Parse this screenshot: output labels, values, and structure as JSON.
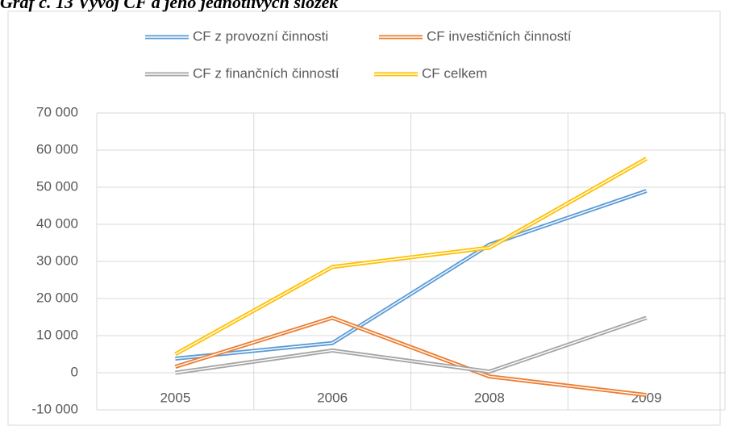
{
  "chart_data": {
    "type": "line",
    "title": "Graf č. 13 Vývoj CF a jeho jednotlivých složek",
    "categories": [
      "2005",
      "2006",
      "2008",
      "2009"
    ],
    "series": [
      {
        "name": "CF z provozní činnosti",
        "color": "#5b9bd5",
        "values": [
          3800,
          8000,
          34500,
          49000
        ]
      },
      {
        "name": "CF investičních činností",
        "color": "#ed7d31",
        "values": [
          1600,
          14800,
          -1000,
          -6000
        ]
      },
      {
        "name": "CF z finančních činností",
        "color": "#a5a5a5",
        "values": [
          0,
          6000,
          300,
          14800
        ]
      },
      {
        "name": "CF celkem",
        "color": "#ffc000",
        "values": [
          5000,
          28500,
          33700,
          57700
        ]
      }
    ],
    "ylim": [
      -10000,
      70000
    ],
    "yticks": [
      {
        "value": -10000,
        "label": "-10 000"
      },
      0,
      {
        "value": 10000,
        "label": "10 000"
      },
      {
        "value": 20000,
        "label": "20 000"
      },
      {
        "value": 30000,
        "label": "30 000"
      },
      {
        "value": 40000,
        "label": "40 000"
      },
      {
        "value": 50000,
        "label": "50 000"
      },
      {
        "value": 60000,
        "label": "60 000"
      },
      {
        "value": 70000,
        "label": "70 000"
      }
    ],
    "grid": true
  }
}
